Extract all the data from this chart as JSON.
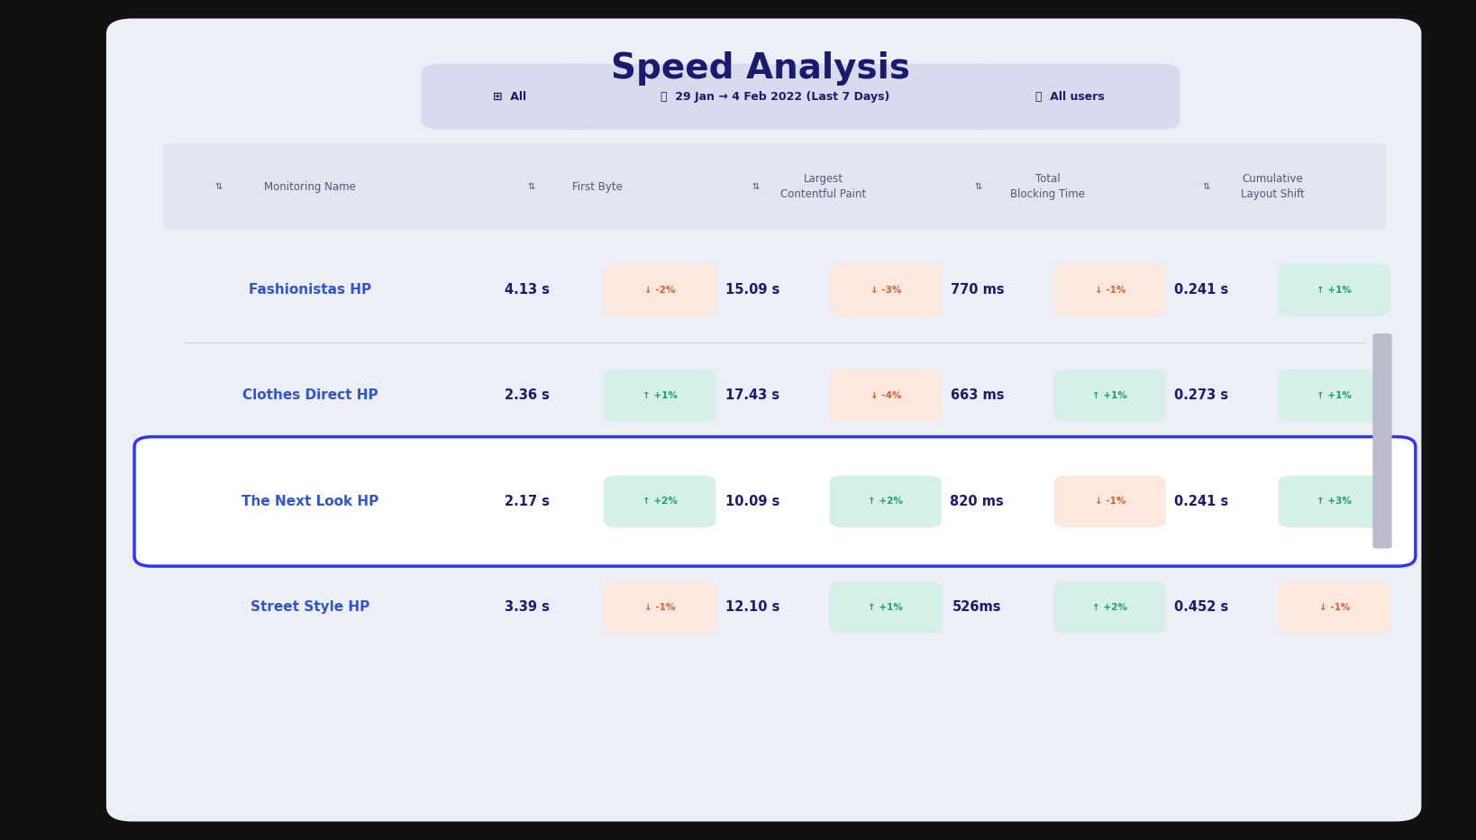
{
  "title": "Speed Analysis",
  "title_color": "#1a1a6e",
  "bg_outer": "#111111",
  "bg_card": "#eceef8",
  "bg_header_row": "#e2e4f0",
  "rows": [
    {
      "name": "Fashionistas HP",
      "first_byte": "4.13 s",
      "fb_badge": "-2%",
      "fb_badge_up": false,
      "lcp": "15.09 s",
      "lcp_badge": "-3%",
      "lcp_badge_up": false,
      "tbt": "770 ms",
      "tbt_badge": "-1%",
      "tbt_badge_up": false,
      "cls": "0.241 s",
      "cls_badge": "+1%",
      "cls_badge_up": true,
      "highlight": false
    },
    {
      "name": "Clothes Direct HP",
      "first_byte": "2.36 s",
      "fb_badge": "+1%",
      "fb_badge_up": true,
      "lcp": "17.43 s",
      "lcp_badge": "-4%",
      "lcp_badge_up": false,
      "tbt": "663 ms",
      "tbt_badge": "+1%",
      "tbt_badge_up": true,
      "cls": "0.273 s",
      "cls_badge": "+1%",
      "cls_badge_up": true,
      "highlight": false
    },
    {
      "name": "The Next Look HP",
      "first_byte": "2.17 s",
      "fb_badge": "+2%",
      "fb_badge_up": true,
      "lcp": "10.09 s",
      "lcp_badge": "+2%",
      "lcp_badge_up": true,
      "tbt": "820 ms",
      "tbt_badge": "-1%",
      "tbt_badge_up": false,
      "cls": "0.241 s",
      "cls_badge": "+3%",
      "cls_badge_up": true,
      "highlight": true
    },
    {
      "name": "Street Style HP",
      "first_byte": "3.39 s",
      "fb_badge": "-1%",
      "fb_badge_up": false,
      "lcp": "12.10 s",
      "lcp_badge": "+1%",
      "lcp_badge_up": true,
      "tbt": "526ms",
      "tbt_badge": "+2%",
      "tbt_badge_up": true,
      "cls": "0.452 s",
      "cls_badge": "-1%",
      "cls_badge_up": false,
      "highlight": false
    }
  ],
  "badge_up_bg": "#d4f0e8",
  "badge_up_text": "#1a9e72",
  "badge_down_bg": "#fde8de",
  "badge_down_text": "#e05a2b",
  "name_color": "#3355cc",
  "value_color": "#1a1a6e",
  "header_text_color": "#555577",
  "filter_bg": "#d8daee",
  "filter_text": "#1a1a6e",
  "separator_color": "#d0d2e0",
  "highlight_border": "#3333ff",
  "highlight_bg": "#ffffff"
}
